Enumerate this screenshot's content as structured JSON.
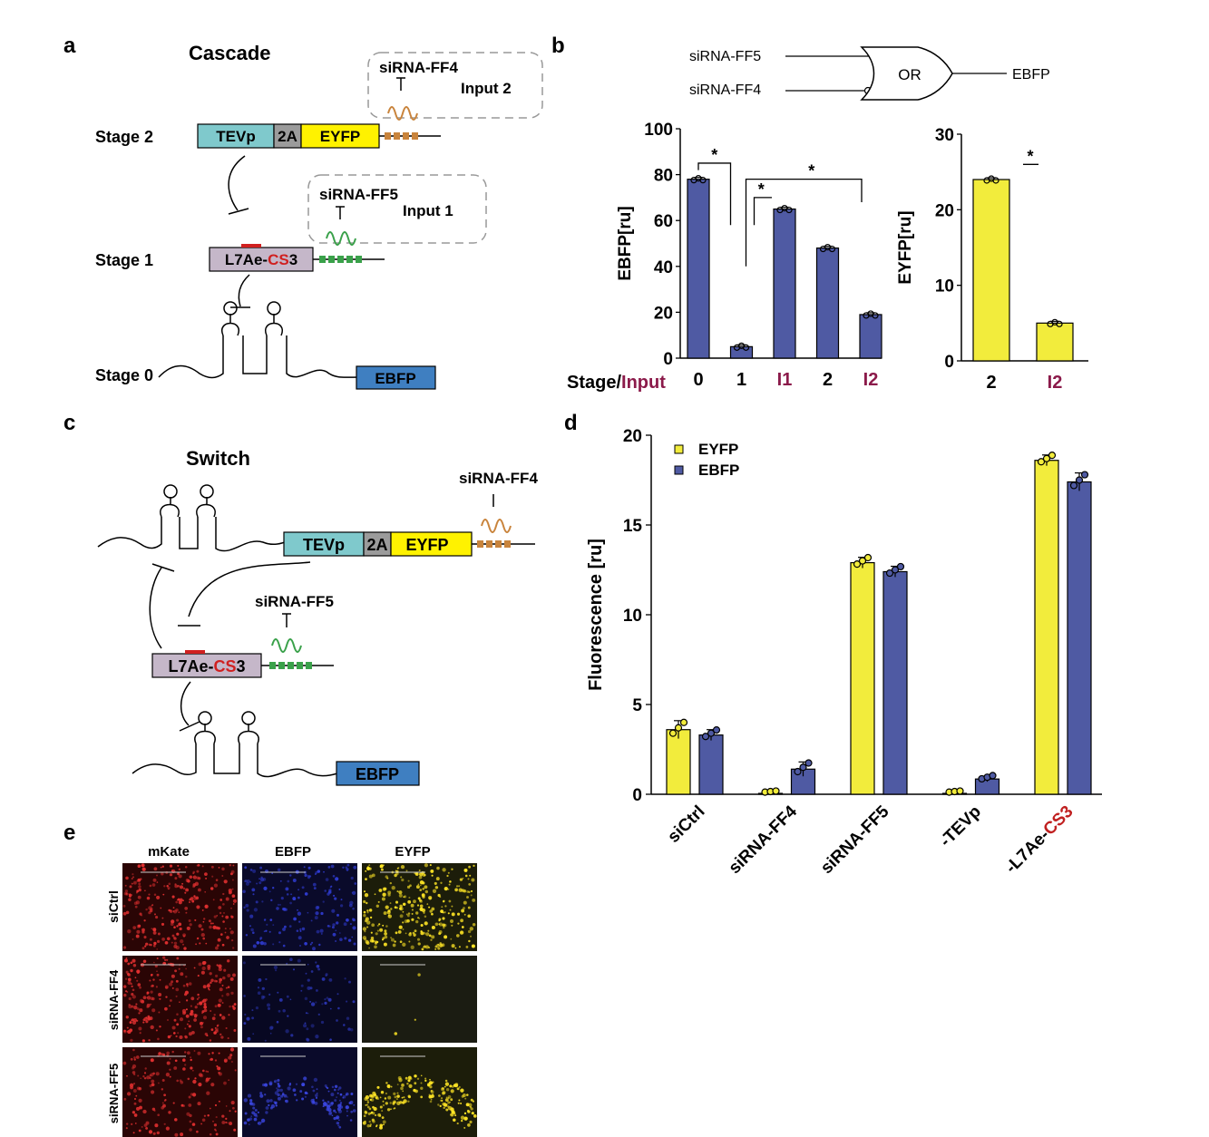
{
  "panels": {
    "a": {
      "letter": "a",
      "title": "Cascade",
      "stage2": "Stage 2",
      "stage1": "Stage 1",
      "stage0": "Stage 0",
      "tevp": "TEVp",
      "two_a": "2A",
      "eyfp": "EYFP",
      "l7ae_prefix": "L7Ae-",
      "cs": "CS",
      "cs_suffix": "3",
      "ebfp": "EBFP",
      "sirna_ff4": "siRNA-FF4",
      "input2": "Input 2",
      "sirna_ff5": "siRNA-FF5",
      "input1": "Input 1"
    },
    "b": {
      "letter": "b",
      "gate_in1": "siRNA-FF5",
      "gate_in2": "siRNA-FF4",
      "gate_label": "OR",
      "gate_out": "EBFP",
      "stage_label": "Stage/",
      "input_label": "Input",
      "star": "*"
    },
    "c": {
      "letter": "c",
      "title": "Switch",
      "tevp": "TEVp",
      "two_a": "2A",
      "eyfp": "EYFP",
      "sirna_ff4": "siRNA-FF4",
      "sirna_ff5": "siRNA-FF5",
      "l7ae_prefix": "L7Ae-",
      "cs": "CS",
      "cs_suffix": "3",
      "ebfp": "EBFP"
    },
    "d": {
      "letter": "d"
    },
    "e": {
      "letter": "e",
      "col_headers": [
        "mKate",
        "EBFP",
        "EYFP"
      ],
      "row_headers": [
        "siCtrl",
        "siRNA-FF4",
        "siRNA-FF5"
      ]
    }
  },
  "chart_data": [
    {
      "id": "b-left",
      "type": "bar",
      "categories": [
        "0",
        "1",
        "I1",
        "2",
        "I2"
      ],
      "category_colors": [
        "#000000",
        "#000000",
        "#8b1a4a",
        "#000000",
        "#8b1a4a"
      ],
      "values": [
        78,
        5,
        65,
        48,
        19
      ],
      "ylabel": "EBFP[ru]",
      "ylim": [
        0,
        100
      ],
      "yticks": [
        0,
        20,
        40,
        60,
        80,
        100
      ],
      "bar_color": "#4f5aa3",
      "significance": [
        "*",
        "*",
        "*"
      ]
    },
    {
      "id": "b-right",
      "type": "bar",
      "categories": [
        "2",
        "I2"
      ],
      "category_colors": [
        "#000000",
        "#8b1a4a"
      ],
      "values": [
        24,
        5
      ],
      "ylabel": "EYFP[ru]",
      "ylim": [
        0,
        30
      ],
      "yticks": [
        0,
        10,
        20,
        30
      ],
      "bar_color": "#f2ec3c",
      "significance": [
        "*"
      ]
    },
    {
      "id": "d",
      "type": "bar",
      "categories": [
        "siCtrl",
        "siRNA-FF4",
        "siRNA-FF5",
        "-TEVp",
        "-L7Ae-CS3"
      ],
      "series": [
        {
          "name": "EYFP",
          "color": "#f2ec3c",
          "values": [
            3.6,
            0.05,
            12.9,
            0.05,
            18.6
          ],
          "errors": [
            0.5,
            0.05,
            0.3,
            0.05,
            0.3
          ]
        },
        {
          "name": "EBFP",
          "color": "#4f5aa3",
          "values": [
            3.3,
            1.4,
            12.4,
            0.85,
            17.4
          ],
          "errors": [
            0.3,
            0.4,
            0.3,
            0.15,
            0.5
          ]
        }
      ],
      "ylabel": "Fluorescence [ru]",
      "ylim": [
        0,
        20
      ],
      "yticks": [
        0,
        5,
        10,
        15,
        20
      ],
      "legend": "top-left"
    }
  ]
}
